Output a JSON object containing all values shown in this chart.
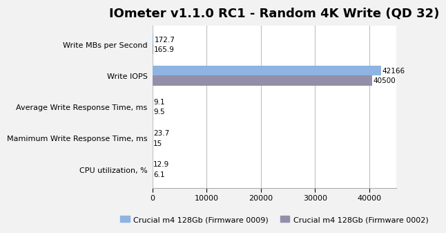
{
  "title": "IOmeter v1.1.0 RC1 - Random 4K Write (QD 32)",
  "categories": [
    "Write MBs per Second",
    "Write IOPS",
    "Average Write Response Time, ms",
    "Mamimum Write Response Time, ms",
    "CPU utilization, %"
  ],
  "values_fw0009": [
    172.7,
    42166,
    9.1,
    23.7,
    12.9
  ],
  "values_fw0002": [
    165.9,
    40500,
    9.5,
    15,
    6.1
  ],
  "color_fw0009": "#8DB4E2",
  "color_fw0002": "#938FA9",
  "legend_fw0009": "Crucial m4 128Gb (Firmware 0009)",
  "legend_fw0002": "Crucial m4 128Gb (Firmware 0002)",
  "xlim": [
    0,
    45000
  ],
  "xticks": [
    0,
    10000,
    20000,
    30000,
    40000
  ],
  "background_color": "#F2F2F2",
  "plot_bg_color": "#FFFFFF",
  "title_fontsize": 13,
  "label_fontsize": 8,
  "tick_fontsize": 8,
  "bar_height": 0.32,
  "value_fontsize": 7.5
}
